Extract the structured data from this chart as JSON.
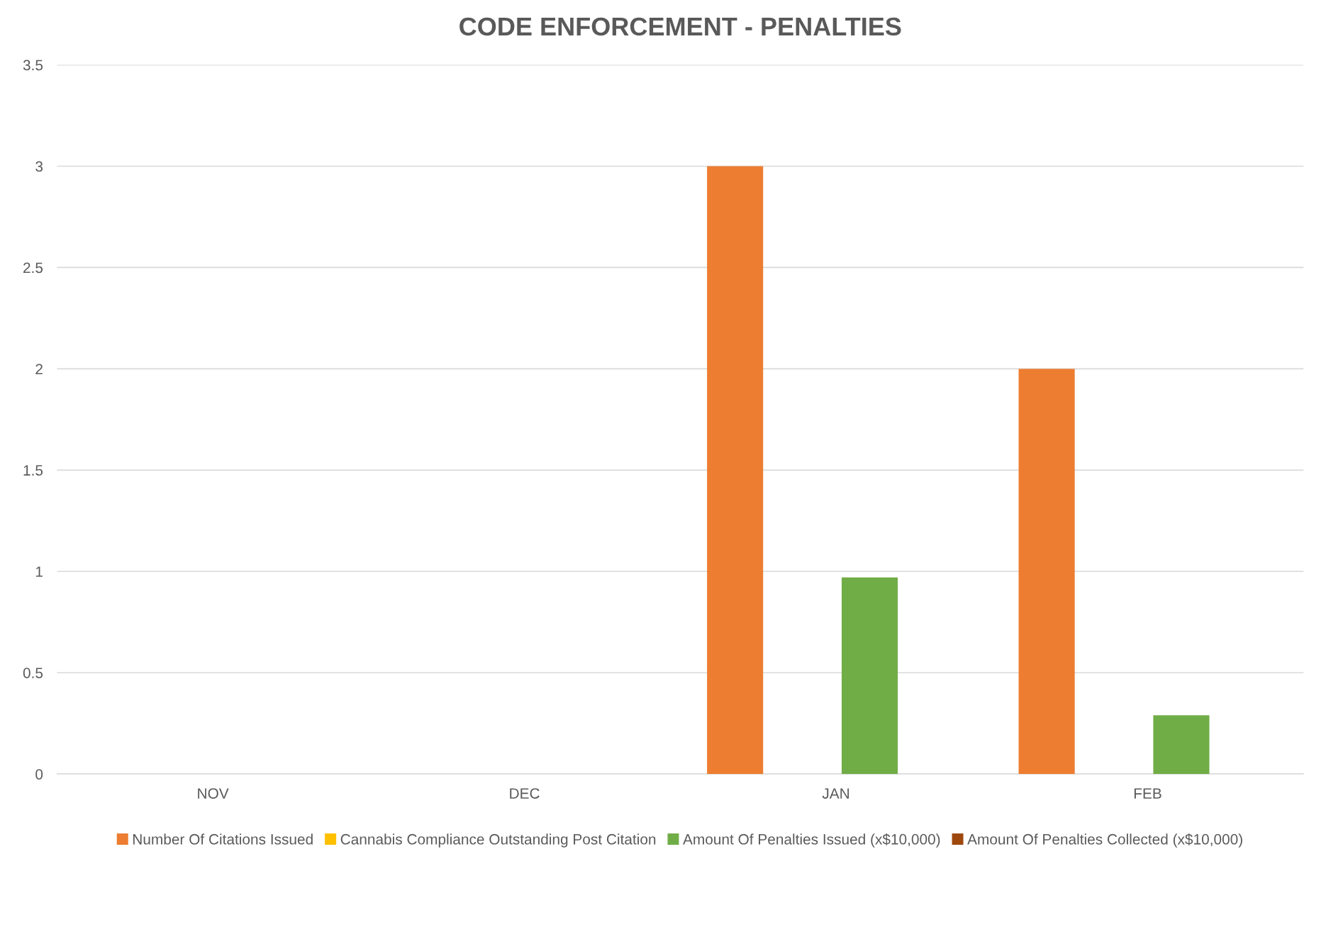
{
  "chart_data": {
    "type": "bar",
    "title": "CODE ENFORCEMENT - PENALTIES",
    "categories": [
      "NOV",
      "DEC",
      "JAN",
      "FEB"
    ],
    "series": [
      {
        "name": "Number Of Citations Issued",
        "color": "#ed7d31",
        "values": [
          0,
          0,
          3,
          2
        ]
      },
      {
        "name": "Cannabis Compliance Outstanding Post Citation",
        "color": "#ffc000",
        "values": [
          0,
          0,
          0,
          0
        ]
      },
      {
        "name": "Amount Of Penalties Issued (x$10,000)",
        "color": "#70ad47",
        "values": [
          0,
          0,
          0.97,
          0.29
        ]
      },
      {
        "name": "Amount Of Penalties Collected (x$10,000)",
        "color": "#9e480e",
        "values": [
          0,
          0,
          0,
          0
        ]
      }
    ],
    "ylim": [
      0,
      3.5
    ],
    "yticks": [
      0,
      0.5,
      1,
      1.5,
      2,
      2.5,
      3,
      3.5
    ],
    "grid": "y",
    "legend": "bottom"
  }
}
